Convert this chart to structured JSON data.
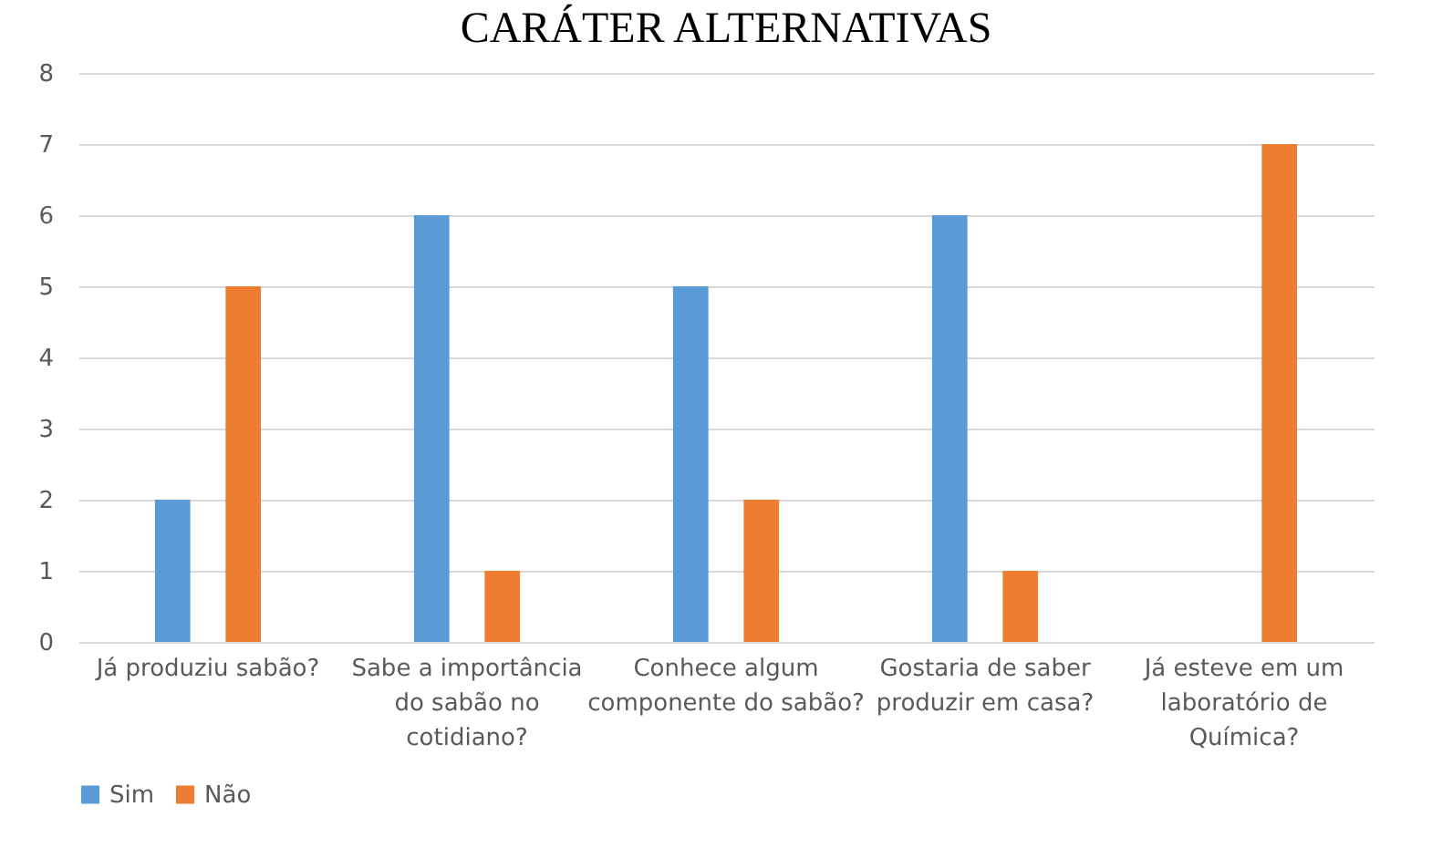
{
  "chart_data": {
    "type": "bar",
    "title": "CARÁTER ALTERNATIVAS",
    "categories": [
      "Já produziu sabão?",
      "Sabe a importância do sabão no cotidiano?",
      "Conhece algum componente do sabão?",
      "Gostaria de saber produzir em casa?",
      "Já esteve em um laboratório de Química?"
    ],
    "series": [
      {
        "name": "Sim",
        "color": "#5b9bd5",
        "values": [
          2,
          6,
          5,
          6,
          0
        ]
      },
      {
        "name": "Não",
        "color": "#ed7d31",
        "values": [
          5,
          1,
          2,
          1,
          7
        ]
      }
    ],
    "ylim": [
      0,
      8
    ],
    "yticks": [
      0,
      1,
      2,
      3,
      4,
      5,
      6,
      7,
      8
    ],
    "grid": "y",
    "legend": "bottom"
  }
}
